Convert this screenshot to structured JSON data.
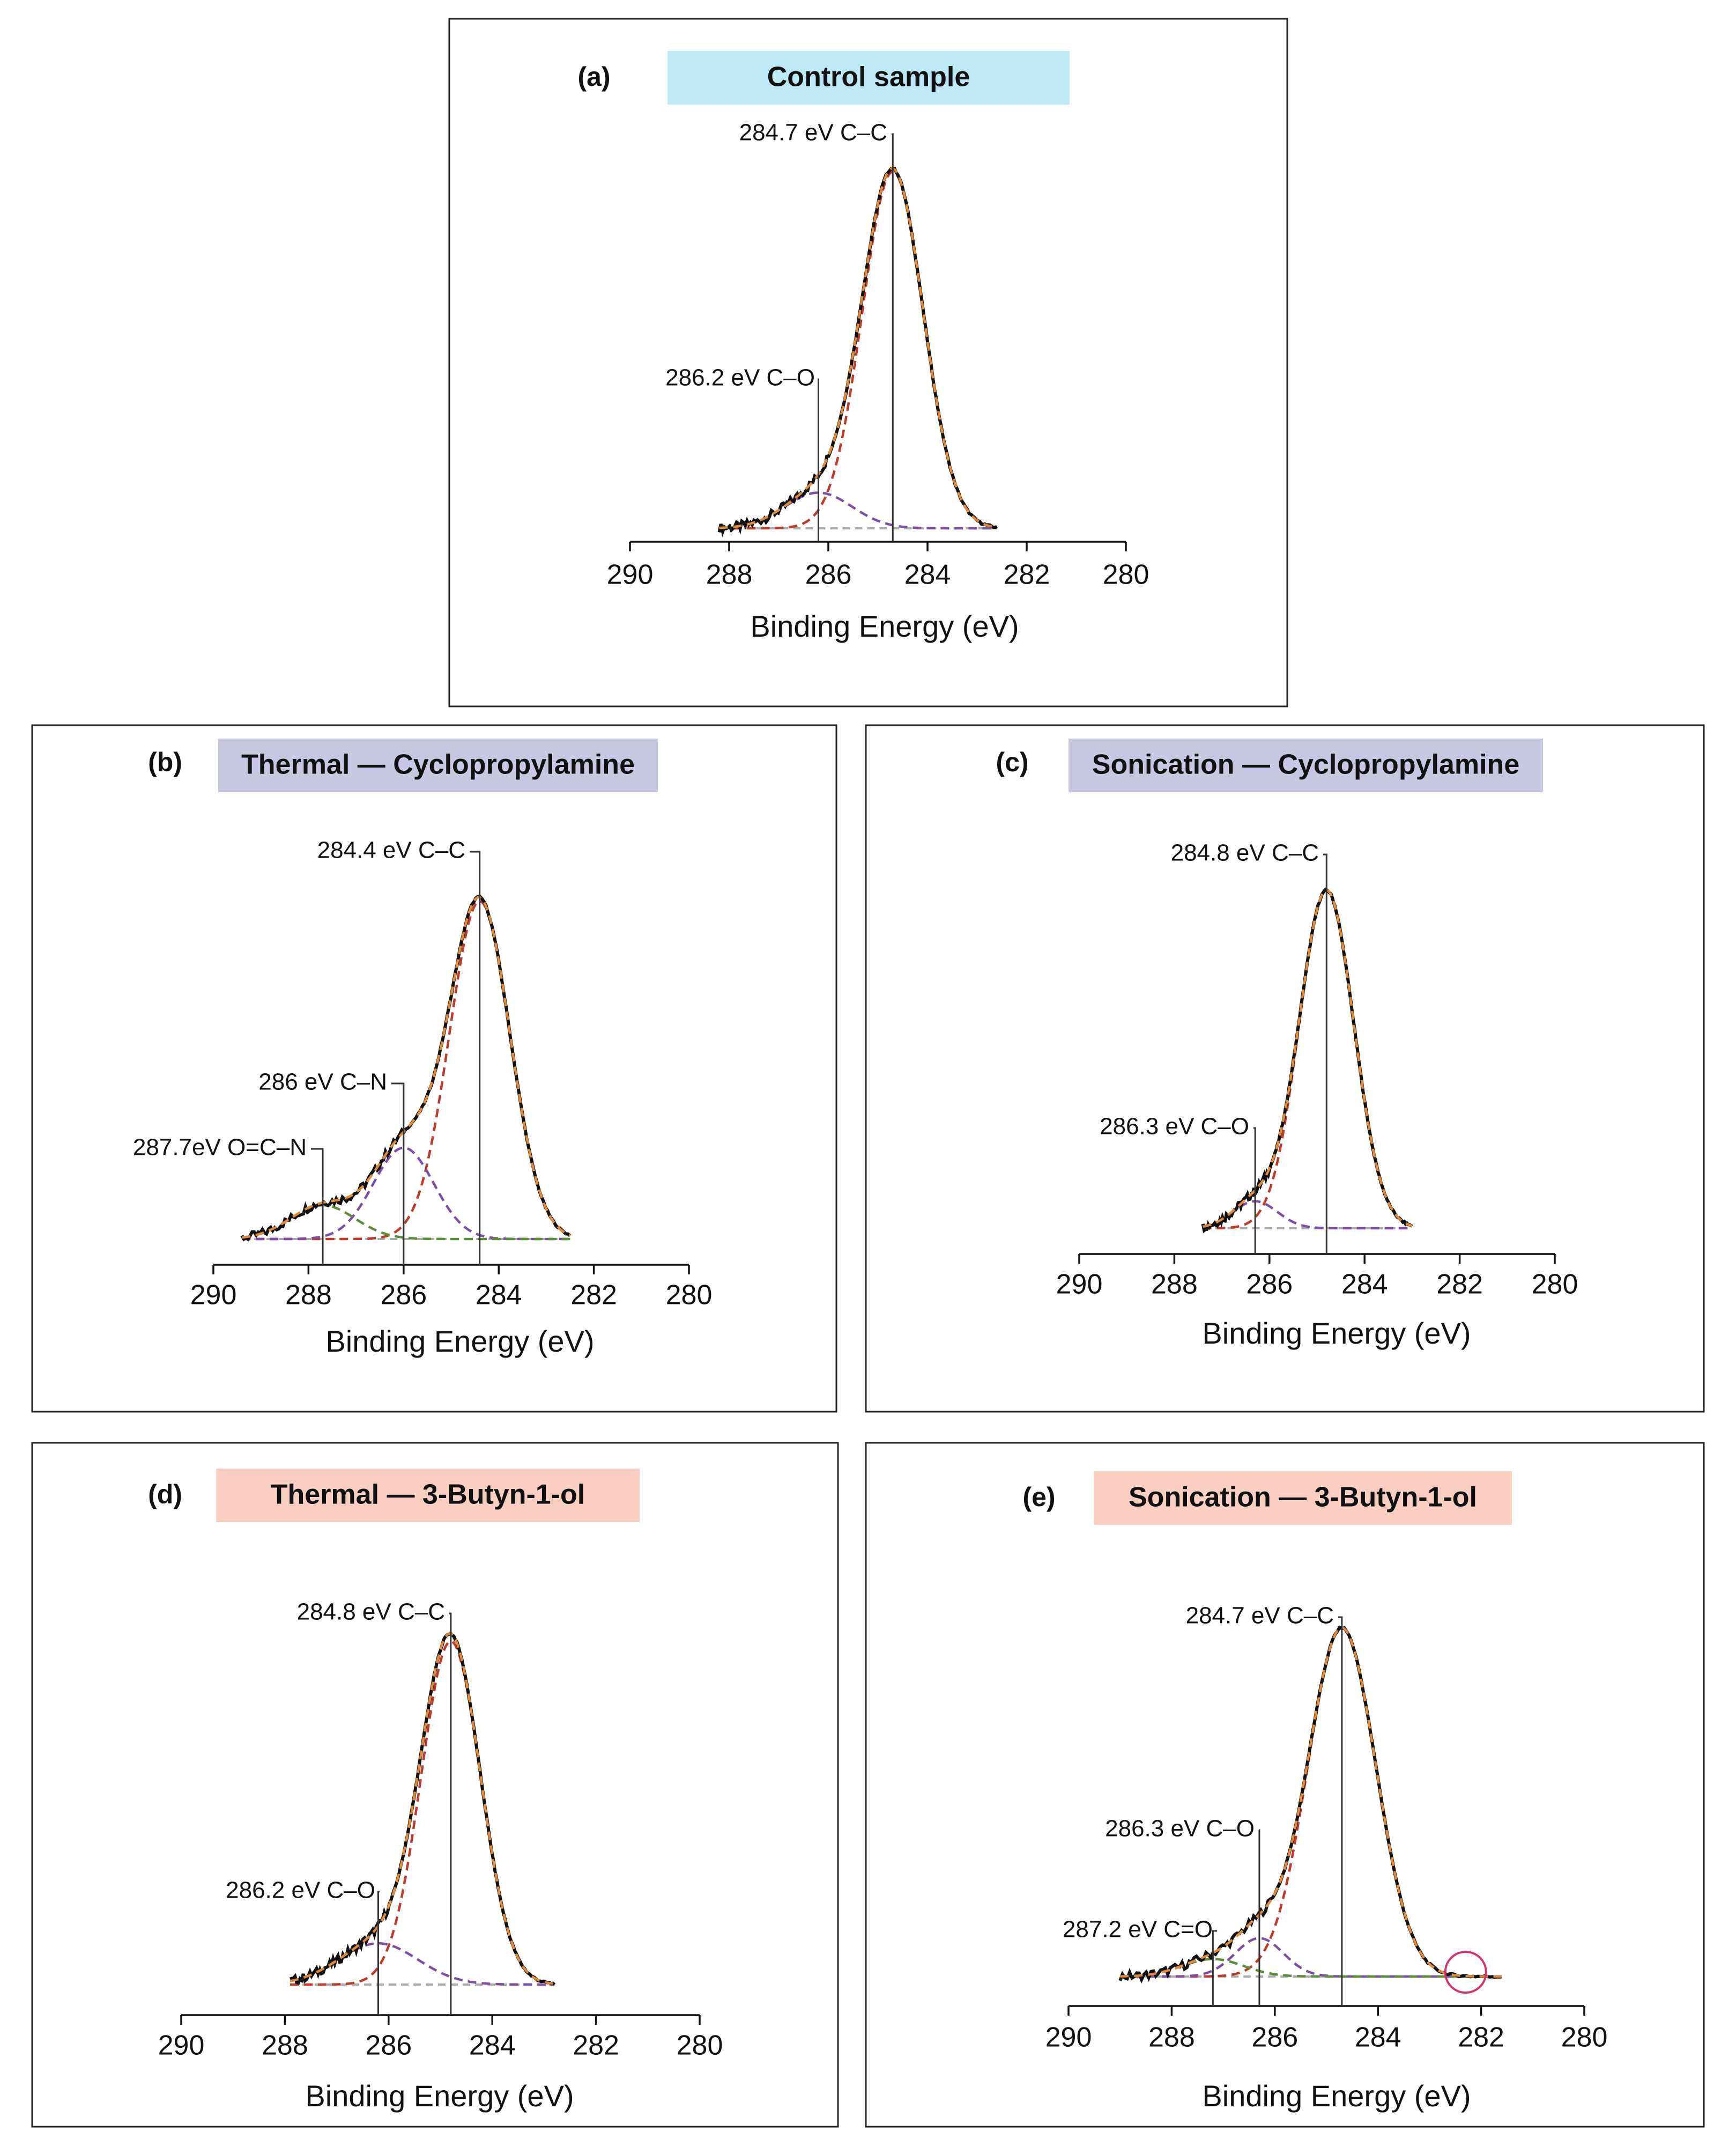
{
  "figure": {
    "xlabel": "Binding Energy (eV)",
    "colors": {
      "measured": "#111111",
      "envelope": "#e08a3c",
      "peak_cc": "#c0392b",
      "peak_2": "#7b4fa6",
      "peak_3": "#5e8c3a",
      "background": "#aaaaaa",
      "highlight_circle": "#d6336c",
      "title_blue": "#bde8f6",
      "title_purple": "#c9c8e2",
      "title_pink": "#f8cfc0"
    }
  },
  "chart_data": [
    {
      "id": "a",
      "type": "line",
      "letter": "(a)",
      "title": "Control sample",
      "title_color": "#bde8f6",
      "xlabel": "Binding Energy (eV)",
      "xlim": [
        290,
        280
      ],
      "x_reversed": true,
      "xticks": [
        290,
        288,
        286,
        284,
        282,
        280
      ],
      "xticklabels": [
        "290",
        "288",
        "286",
        "284",
        "282",
        "280"
      ],
      "range": [
        288.2,
        282.6
      ],
      "peaks": [
        {
          "center": 284.7,
          "height": 1.0,
          "fwhm": 1.45,
          "component": "C–C",
          "label": "284.7 eV C–C",
          "color": "#c0392b"
        },
        {
          "center": 286.2,
          "height": 0.1,
          "fwhm": 1.6,
          "component": "C–O",
          "label": "286.2 eV C–O",
          "color": "#7b4fa6"
        }
      ]
    },
    {
      "id": "b",
      "type": "line",
      "letter": "(b)",
      "title": "Thermal — Cyclopropylamine",
      "title_color": "#c9c8e2",
      "xlabel": "Binding Energy (eV)",
      "xlim": [
        290,
        280
      ],
      "x_reversed": true,
      "xticks": [
        290,
        288,
        286,
        284,
        282,
        280
      ],
      "xticklabels": [
        "290",
        "288",
        "286",
        "284",
        "282",
        "280"
      ],
      "range": [
        289.4,
        282.5
      ],
      "peaks": [
        {
          "center": 284.4,
          "height": 1.0,
          "fwhm": 1.5,
          "component": "C–C",
          "label": "284.4 eV C–C",
          "color": "#c0392b"
        },
        {
          "center": 286.0,
          "height": 0.27,
          "fwhm": 1.5,
          "component": "C–N",
          "label": "286 eV C–N",
          "color": "#7b4fa6"
        },
        {
          "center": 287.7,
          "height": 0.1,
          "fwhm": 1.6,
          "component": "O=C–N",
          "label": "287.7eV O=C–N",
          "color": "#5e8c3a"
        }
      ]
    },
    {
      "id": "c",
      "type": "line",
      "letter": "(c)",
      "title": "Sonication — Cyclopropylamine",
      "title_color": "#c9c8e2",
      "xlabel": "Binding Energy (eV)",
      "xlim": [
        290,
        280
      ],
      "x_reversed": true,
      "xticks": [
        290,
        288,
        286,
        284,
        282,
        280
      ],
      "xticklabels": [
        "290",
        "288",
        "286",
        "284",
        "282",
        "280"
      ],
      "range": [
        287.4,
        283.0
      ],
      "peaks": [
        {
          "center": 284.8,
          "height": 1.0,
          "fwhm": 1.35,
          "component": "C–C",
          "label": "284.8 eV C–C",
          "color": "#c0392b"
        },
        {
          "center": 286.3,
          "height": 0.08,
          "fwhm": 1.1,
          "component": "C–O",
          "label": "286.3 eV C–O",
          "color": "#7b4fa6"
        }
      ]
    },
    {
      "id": "d",
      "type": "line",
      "letter": "(d)",
      "title": "Thermal — 3-Butyn-1-ol",
      "title_color": "#f8cfc0",
      "xlabel": "Binding Energy (eV)",
      "xlim": [
        290,
        280
      ],
      "x_reversed": true,
      "xticks": [
        290,
        288,
        286,
        284,
        282,
        280
      ],
      "xticklabels": [
        "290",
        "288",
        "286",
        "284",
        "282",
        "280"
      ],
      "range": [
        287.9,
        282.8
      ],
      "peaks": [
        {
          "center": 284.8,
          "height": 1.0,
          "fwhm": 1.35,
          "component": "C–C",
          "label": "284.8 eV C–C",
          "color": "#c0392b"
        },
        {
          "center": 286.2,
          "height": 0.12,
          "fwhm": 1.8,
          "component": "C–O",
          "label": "286.2 eV C–O",
          "color": "#7b4fa6"
        }
      ]
    },
    {
      "id": "e",
      "type": "line",
      "letter": "(e)",
      "title": "Sonication — 3-Butyn-1-ol",
      "title_color": "#f8cfc0",
      "xlabel": "Binding Energy (eV)",
      "xlim": [
        290,
        280
      ],
      "x_reversed": true,
      "xticks": [
        290,
        288,
        286,
        284,
        282,
        280
      ],
      "xticklabels": [
        "290",
        "288",
        "286",
        "284",
        "282",
        "280"
      ],
      "range": [
        289.0,
        281.6
      ],
      "peaks": [
        {
          "center": 284.7,
          "height": 1.0,
          "fwhm": 1.55,
          "component": "C–C",
          "label": "284.7 eV C–C",
          "color": "#c0392b"
        },
        {
          "center": 286.3,
          "height": 0.11,
          "fwhm": 1.1,
          "component": "C–O",
          "label": "286.3 eV C–O",
          "color": "#7b4fa6"
        },
        {
          "center": 287.2,
          "height": 0.05,
          "fwhm": 1.4,
          "component": "C=O",
          "label": "287.2 eV C=O",
          "color": "#5e8c3a"
        }
      ],
      "highlight_circle_at": 282.3
    }
  ]
}
